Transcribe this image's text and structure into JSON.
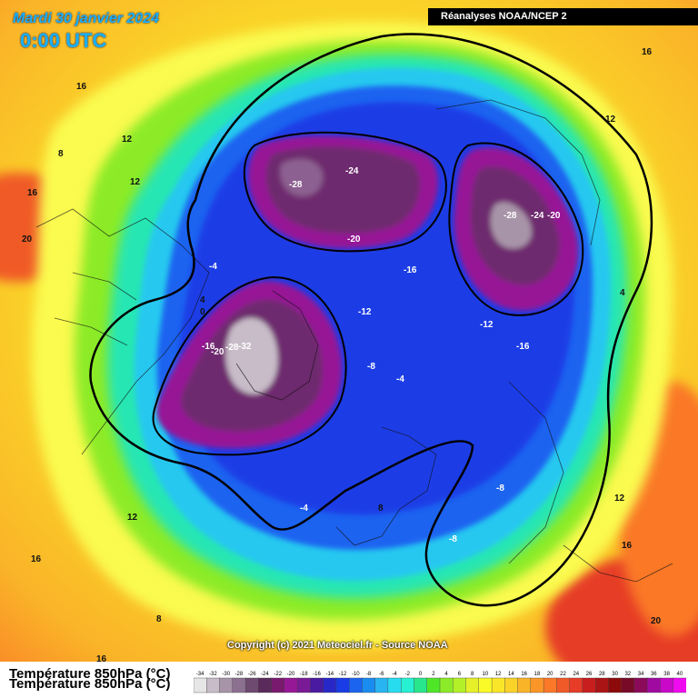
{
  "header": {
    "date": "Mardi 30 janvier 2024",
    "time": "0:00 UTC",
    "source": "Réanalyses NOAA/NCEP 2"
  },
  "footer": {
    "copyright": "Copyright (c) 2021 Meteociel.fr - Source NOAA",
    "field_title": "Température 850hPa (°C)"
  },
  "legend": {
    "ticks": [
      "-34",
      "-32",
      "-30",
      "-28",
      "-26",
      "-24",
      "-22",
      "-20",
      "-18",
      "-16",
      "-14",
      "-12",
      "-10",
      "-8",
      "-6",
      "-4",
      "-2",
      "0",
      "2",
      "4",
      "6",
      "8",
      "10",
      "12",
      "14",
      "16",
      "18",
      "20",
      "22",
      "24",
      "26",
      "28",
      "30",
      "32",
      "34",
      "36",
      "38",
      "40"
    ],
    "colors": [
      "#e6e6e6",
      "#c8bcc8",
      "#a894a8",
      "#8c7090",
      "#6e4a70",
      "#5a2a5a",
      "#7a1a6e",
      "#961896",
      "#7a1a96",
      "#4a1aa0",
      "#2828c8",
      "#1a3ce6",
      "#1a64f0",
      "#1a8cf0",
      "#28b4f0",
      "#28dcf0",
      "#28f0d2",
      "#28e68c",
      "#50e628",
      "#8ceb28",
      "#b4f028",
      "#e6f028",
      "#fafa28",
      "#fae628",
      "#fad228",
      "#fab428",
      "#fa9628",
      "#fa7828",
      "#f05a28",
      "#e63c28",
      "#c81e1e",
      "#aa1414",
      "#8c0a0a",
      "#780a28",
      "#8c0a5a",
      "#a00aa0",
      "#c80ac8",
      "#f00af0"
    ]
  },
  "labels": [
    "16",
    "12",
    "8",
    "16",
    "20",
    "12",
    "4",
    "0",
    "-4",
    "-16",
    "-20",
    "-28",
    "-32",
    "-24",
    "-28",
    "-20",
    "-16",
    "-12",
    "-8",
    "-4",
    "-12",
    "-16",
    "-24",
    "-20",
    "-28",
    "-8",
    "-8",
    "12",
    "16",
    "20",
    "12",
    "16",
    "8",
    "16",
    "4",
    "12",
    "16",
    "-4",
    "8"
  ]
}
